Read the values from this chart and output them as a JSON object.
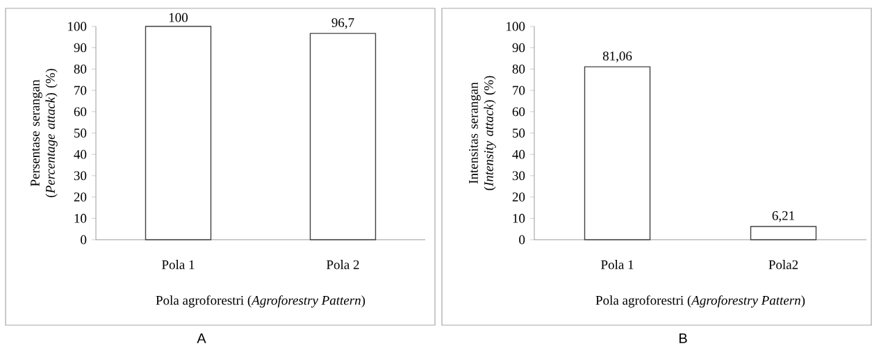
{
  "chart_data": [
    {
      "type": "bar",
      "categories": [
        "Pola 1",
        "Pola 2"
      ],
      "values": [
        100,
        96.7
      ],
      "value_labels": [
        "100",
        "96,7"
      ],
      "color": "#ffffff",
      "xlabel": "Pola agroforestri (*Agroforestry Pattern*)",
      "ylabel": "Persentase serangan (*Percentage attack*) (%)",
      "ylim": [
        0,
        100
      ],
      "yticks": [
        0,
        10,
        20,
        30,
        40,
        50,
        60,
        70,
        80,
        90,
        100
      ],
      "annotations": [
        "A"
      ]
    },
    {
      "type": "bar",
      "categories": [
        "Pola 1",
        "Pola2"
      ],
      "values": [
        81.06,
        6.21
      ],
      "value_labels": [
        "81,06",
        "6,21"
      ],
      "color": "#ffffff",
      "xlabel": "Pola agroforestri (*Agroforestry Pattern*)",
      "ylabel": "Intensitas serangan (*Intensity attack*) (%)",
      "ylim": [
        0,
        100
      ],
      "yticks": [
        0,
        10,
        20,
        30,
        40,
        50,
        60,
        70,
        80,
        90,
        100
      ],
      "annotations": [
        "B"
      ]
    }
  ]
}
